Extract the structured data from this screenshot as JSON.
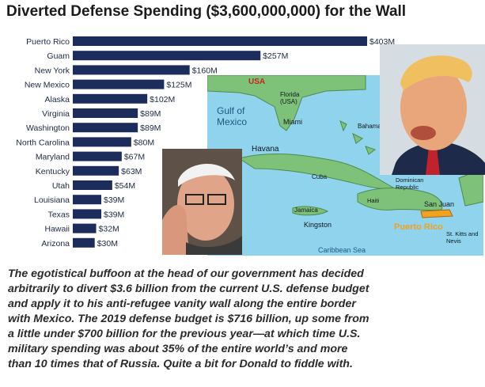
{
  "title": "Diverted Defense Spending ($3,600,000,000) for the Wall",
  "chart_data": {
    "type": "bar",
    "orientation": "horizontal",
    "unit_suffix": "M",
    "bar_color": "#1c2d5c",
    "categories": [
      "Puerto Rico",
      "Guam",
      "New York",
      "New Mexico",
      "Alaska",
      "Virginia",
      "Washington",
      "North Carolina",
      "Maryland",
      "Kentucky",
      "Utah",
      "Louisiana",
      "Texas",
      "Hawaii",
      "Arizona"
    ],
    "values": [
      403,
      257,
      160,
      125,
      102,
      89,
      89,
      80,
      67,
      63,
      54,
      39,
      39,
      32,
      30
    ],
    "value_labels": [
      "$403M",
      "$257M",
      "$160M",
      "$125M",
      "$102M",
      "$89M",
      "$89M",
      "$80M",
      "$67M",
      "$63M",
      "$54M",
      "$39M",
      "$39M",
      "$32M",
      "$30M"
    ],
    "xlim": [
      0,
      403
    ],
    "grid": false,
    "legend": "none"
  },
  "map": {
    "labels": [
      "USA",
      "Florida (USA)",
      "Gulf of Mexico",
      "Miami",
      "Bahamas",
      "Havana",
      "Cuba",
      "Dominican Republic",
      "Haiti",
      "Jamaica",
      "Kingston",
      "San Juan",
      "Puerto Rico",
      "St. Kitts and Nevis",
      "Caribbean Sea"
    ],
    "ocean_color": "#8fd3ec",
    "land_color": "#7ec27a",
    "highlight_color": "#f0a320"
  },
  "caption": [
    "The egotistical buffoon at the head of our government has decided",
    "arbitrarily to divert $3.6 billion from the current U.S. defense budget",
    "and apply it to his anti-refugee vanity wall along the entire border",
    "with Mexico. The 2019 defense budget is $716 billion, up some from",
    "a little under $700 billion for the previous year—at which time U.S.",
    "military spending was about 35% of the entire world’s and more",
    "than 10 times that of Russia. Quite a bit for Donald to fiddle with."
  ]
}
